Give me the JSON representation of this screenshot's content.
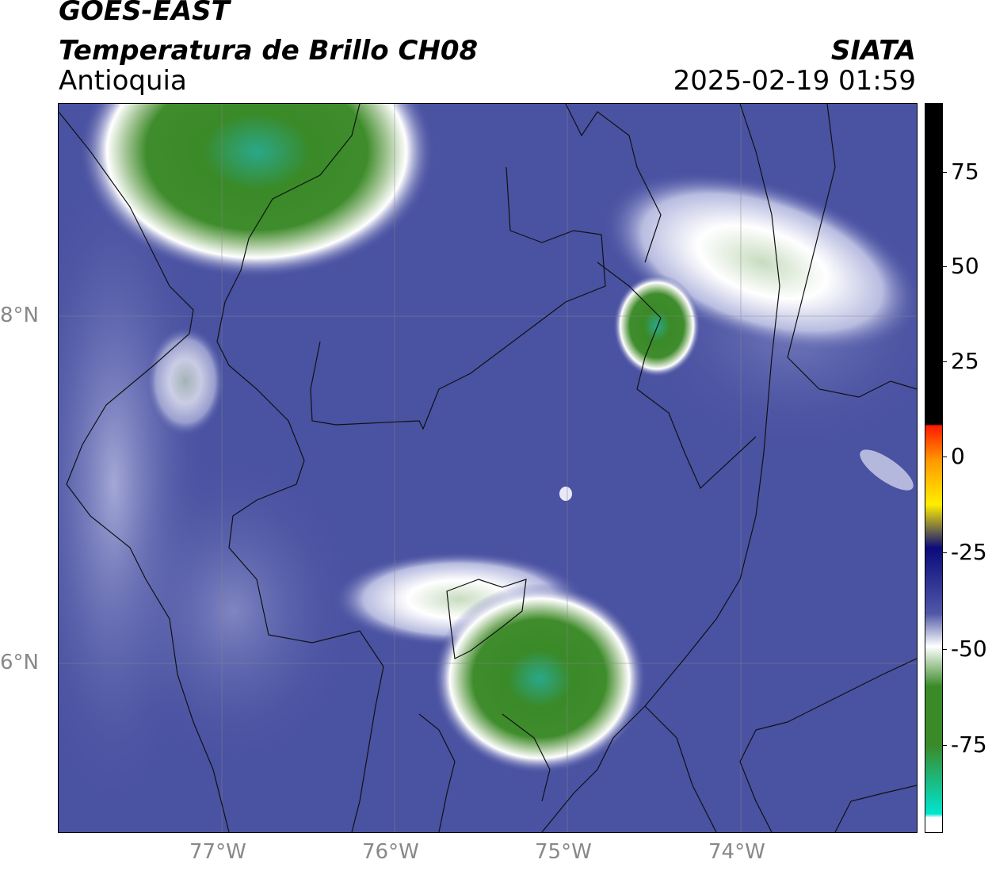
{
  "header": {
    "satellite": "GOES-EAST",
    "product": "Temperatura de Brillo CH08",
    "region": "Antioquia",
    "organization": "SIATA",
    "timestamp": "2025-02-19 01:59"
  },
  "map": {
    "lat_labels": [
      "8°N",
      "6°N"
    ],
    "lon_labels": [
      "77°W",
      "76°W",
      "75°W",
      "74°W"
    ]
  },
  "colorbar": {
    "labels": [
      "75",
      "50",
      "25",
      "0",
      "-25",
      "-50",
      "-75"
    ],
    "colors": {
      "black": "#000000",
      "red": "#ff1a00",
      "orange": "#ff9900",
      "yellow": "#ffee00",
      "navy": "#0a0a7a",
      "blue_purple": "#5058a8",
      "white": "#ffffff",
      "green": "#3a8a28",
      "cyan": "#00e6d0"
    }
  }
}
